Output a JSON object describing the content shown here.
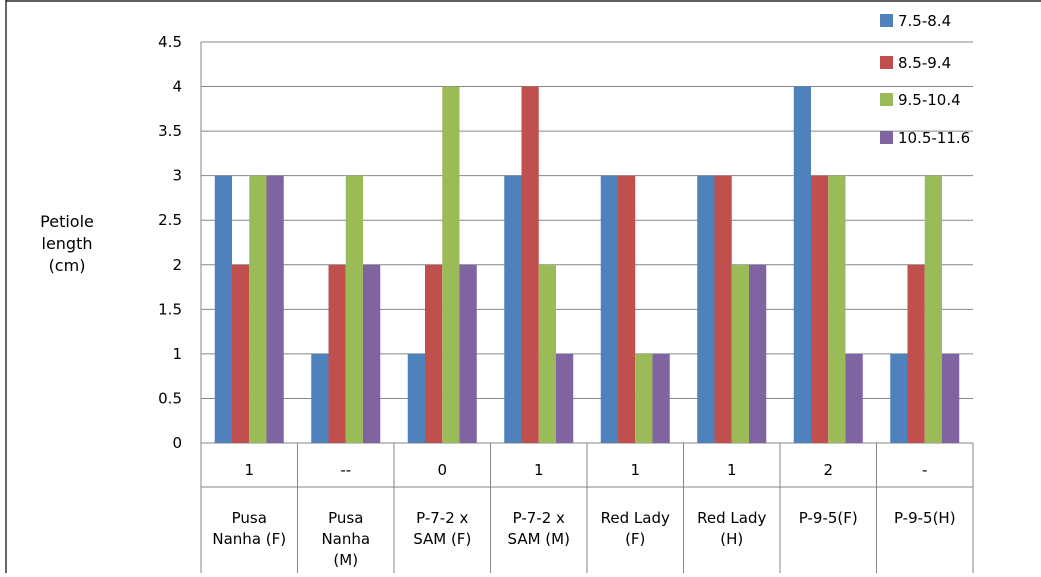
{
  "chart_data": {
    "type": "bar",
    "title": "",
    "ylabel": [
      "Petiole",
      "length",
      "(cm)"
    ],
    "ylim": [
      0,
      4.5
    ],
    "yticks": [
      "0",
      "0.5",
      "1",
      "1.5",
      "2",
      "2.5",
      "3",
      "3.5",
      "4",
      "4.5"
    ],
    "grid": true,
    "legend_position": "top-right",
    "categories": [
      {
        "code": "1",
        "name": [
          "Pusa",
          "Nanha (F)"
        ]
      },
      {
        "code": "--",
        "name": [
          "Pusa",
          "Nanha",
          "(M)"
        ]
      },
      {
        "code": "0",
        "name": [
          "P-7-2 x",
          "SAM (F)"
        ]
      },
      {
        "code": "1",
        "name": [
          "P-7-2 x",
          "SAM (M)"
        ]
      },
      {
        "code": "1",
        "name": [
          "Red Lady",
          "(F)"
        ]
      },
      {
        "code": "1",
        "name": [
          "Red Lady",
          "(H)"
        ]
      },
      {
        "code": "2",
        "name": [
          "P-9-5(F)"
        ]
      },
      {
        "code": "-",
        "name": [
          "P-9-5(H)"
        ]
      }
    ],
    "series": [
      {
        "name": "7.5-8.4",
        "color": "#4F81BD",
        "values": [
          3,
          1,
          1,
          3,
          3,
          3,
          4,
          1
        ]
      },
      {
        "name": "8.5-9.4",
        "color": "#C0504D",
        "values": [
          2,
          2,
          2,
          4,
          3,
          3,
          3,
          2
        ]
      },
      {
        "name": "9.5-10.4",
        "color": "#9BBB59",
        "values": [
          3,
          3,
          4,
          2,
          1,
          2,
          3,
          3
        ]
      },
      {
        "name": "10.5-11.6",
        "color": "#8064A2",
        "values": [
          3,
          2,
          2,
          1,
          1,
          2,
          1,
          1
        ]
      }
    ]
  }
}
